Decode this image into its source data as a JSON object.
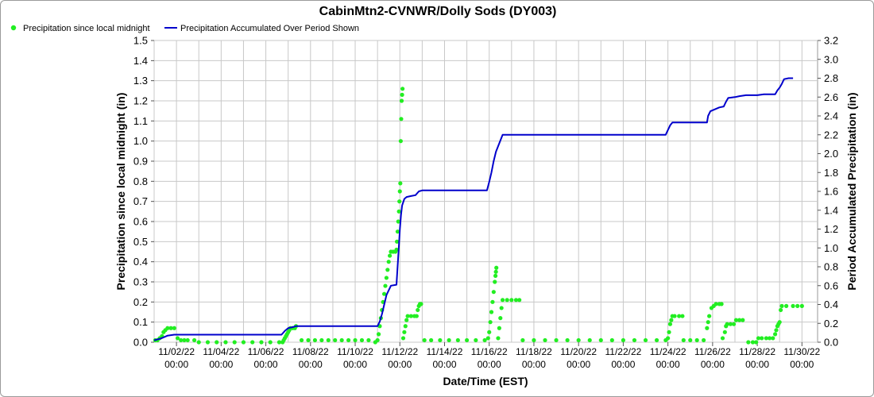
{
  "chart_data": {
    "type": "line",
    "title": "CabinMtn2-CVNWR/Dolly Sods (DY003)",
    "xlabel": "Date/Time (EST)",
    "ylabel_left": "Precipitation since local midnight (in)",
    "ylabel_right": "Period Accumulated Precipitation (in)",
    "y_left_range": [
      0,
      1.5
    ],
    "y_right_range": [
      0,
      3.2
    ],
    "y_left_ticks": [
      "0.0",
      "0.1",
      "0.2",
      "0.3",
      "0.4",
      "0.5",
      "0.6",
      "0.7",
      "0.8",
      "0.9",
      "1.0",
      "1.1",
      "1.2",
      "1.3",
      "1.4",
      "1.5"
    ],
    "y_right_ticks": [
      "0.0",
      "0.2",
      "0.4",
      "0.6",
      "0.8",
      "1.0",
      "1.2",
      "1.4",
      "1.6",
      "1.8",
      "2.0",
      "2.2",
      "2.4",
      "2.6",
      "2.8",
      "3.0",
      "3.2"
    ],
    "x_range_days": [
      0,
      29.7
    ],
    "x_ticks": [
      {
        "date": "11/02/22",
        "time": "00:00"
      },
      {
        "date": "11/04/22",
        "time": "00:00"
      },
      {
        "date": "11/06/22",
        "time": "00:00"
      },
      {
        "date": "11/08/22",
        "time": "00:00"
      },
      {
        "date": "11/10/22",
        "time": "00:00"
      },
      {
        "date": "11/12/22",
        "time": "00:00"
      },
      {
        "date": "11/14/22",
        "time": "00:00"
      },
      {
        "date": "11/16/22",
        "time": "00:00"
      },
      {
        "date": "11/18/22",
        "time": "00:00"
      },
      {
        "date": "11/20/22",
        "time": "00:00"
      },
      {
        "date": "11/22/22",
        "time": "00:00"
      },
      {
        "date": "11/24/22",
        "time": "00:00"
      },
      {
        "date": "11/26/22",
        "time": "00:00"
      },
      {
        "date": "11/28/22",
        "time": "00:00"
      },
      {
        "date": "11/30/22",
        "time": "00:00"
      }
    ],
    "grid": true,
    "legend_position": "top-left",
    "series": [
      {
        "name": "Precipitation since local midnight",
        "color": "#22ee22",
        "marker": "dot",
        "axis": "left",
        "points": [
          [
            0.05,
            0.01
          ],
          [
            0.15,
            0.01
          ],
          [
            0.25,
            0.02
          ],
          [
            0.35,
            0.03
          ],
          [
            0.42,
            0.05
          ],
          [
            0.5,
            0.06
          ],
          [
            0.6,
            0.07
          ],
          [
            0.75,
            0.07
          ],
          [
            0.9,
            0.07
          ],
          [
            1.05,
            0.02
          ],
          [
            1.2,
            0.01
          ],
          [
            1.35,
            0.01
          ],
          [
            1.5,
            0.01
          ],
          [
            1.8,
            0.01
          ],
          [
            2.0,
            0.0
          ],
          [
            2.4,
            0.0
          ],
          [
            2.8,
            0.0
          ],
          [
            3.2,
            0.0
          ],
          [
            3.6,
            0.0
          ],
          [
            4.0,
            0.0
          ],
          [
            4.4,
            0.0
          ],
          [
            4.8,
            0.0
          ],
          [
            5.2,
            0.0
          ],
          [
            5.6,
            0.0
          ],
          [
            5.75,
            0.0
          ],
          [
            5.8,
            0.01
          ],
          [
            5.85,
            0.02
          ],
          [
            5.9,
            0.03
          ],
          [
            5.95,
            0.04
          ],
          [
            6.0,
            0.05
          ],
          [
            6.05,
            0.06
          ],
          [
            6.1,
            0.07
          ],
          [
            6.2,
            0.07
          ],
          [
            6.3,
            0.07
          ],
          [
            6.35,
            0.08
          ],
          [
            6.6,
            0.01
          ],
          [
            6.9,
            0.01
          ],
          [
            7.2,
            0.01
          ],
          [
            7.5,
            0.01
          ],
          [
            7.8,
            0.01
          ],
          [
            8.1,
            0.01
          ],
          [
            8.4,
            0.01
          ],
          [
            8.7,
            0.01
          ],
          [
            9.0,
            0.01
          ],
          [
            9.3,
            0.01
          ],
          [
            9.6,
            0.01
          ],
          [
            9.9,
            0.0
          ],
          [
            10.0,
            0.01
          ],
          [
            10.05,
            0.04
          ],
          [
            10.1,
            0.08
          ],
          [
            10.15,
            0.12
          ],
          [
            10.2,
            0.16
          ],
          [
            10.25,
            0.2
          ],
          [
            10.3,
            0.24
          ],
          [
            10.35,
            0.28
          ],
          [
            10.4,
            0.32
          ],
          [
            10.45,
            0.36
          ],
          [
            10.5,
            0.4
          ],
          [
            10.55,
            0.43
          ],
          [
            10.6,
            0.45
          ],
          [
            10.7,
            0.45
          ],
          [
            10.8,
            0.45
          ],
          [
            10.85,
            0.46
          ],
          [
            10.87,
            0.5
          ],
          [
            10.9,
            0.55
          ],
          [
            10.93,
            0.6
          ],
          [
            10.96,
            0.65
          ],
          [
            10.98,
            0.7
          ],
          [
            11.0,
            0.75
          ],
          [
            11.02,
            0.79
          ],
          [
            11.04,
            1.0
          ],
          [
            11.06,
            1.11
          ],
          [
            11.08,
            1.2
          ],
          [
            11.1,
            1.23
          ],
          [
            11.12,
            1.26
          ],
          [
            11.15,
            0.02
          ],
          [
            11.2,
            0.05
          ],
          [
            11.25,
            0.08
          ],
          [
            11.3,
            0.11
          ],
          [
            11.35,
            0.13
          ],
          [
            11.5,
            0.13
          ],
          [
            11.65,
            0.13
          ],
          [
            11.75,
            0.13
          ],
          [
            11.8,
            0.16
          ],
          [
            11.85,
            0.18
          ],
          [
            11.9,
            0.19
          ],
          [
            11.95,
            0.19
          ],
          [
            12.1,
            0.01
          ],
          [
            12.4,
            0.01
          ],
          [
            12.8,
            0.01
          ],
          [
            13.2,
            0.01
          ],
          [
            13.6,
            0.01
          ],
          [
            14.0,
            0.01
          ],
          [
            14.4,
            0.01
          ],
          [
            14.8,
            0.01
          ],
          [
            14.95,
            0.02
          ],
          [
            15.0,
            0.05
          ],
          [
            15.05,
            0.1
          ],
          [
            15.1,
            0.15
          ],
          [
            15.15,
            0.2
          ],
          [
            15.2,
            0.25
          ],
          [
            15.25,
            0.3
          ],
          [
            15.28,
            0.33
          ],
          [
            15.3,
            0.35
          ],
          [
            15.32,
            0.37
          ],
          [
            15.4,
            0.02
          ],
          [
            15.45,
            0.07
          ],
          [
            15.5,
            0.12
          ],
          [
            15.55,
            0.17
          ],
          [
            15.6,
            0.21
          ],
          [
            15.8,
            0.21
          ],
          [
            16.0,
            0.21
          ],
          [
            16.2,
            0.21
          ],
          [
            16.35,
            0.21
          ],
          [
            16.5,
            0.01
          ],
          [
            17.0,
            0.01
          ],
          [
            17.5,
            0.01
          ],
          [
            18.0,
            0.01
          ],
          [
            18.5,
            0.01
          ],
          [
            19.0,
            0.01
          ],
          [
            19.5,
            0.01
          ],
          [
            20.0,
            0.01
          ],
          [
            20.5,
            0.01
          ],
          [
            21.0,
            0.01
          ],
          [
            21.5,
            0.01
          ],
          [
            22.0,
            0.01
          ],
          [
            22.5,
            0.01
          ],
          [
            22.9,
            0.01
          ],
          [
            23.0,
            0.02
          ],
          [
            23.05,
            0.05
          ],
          [
            23.1,
            0.09
          ],
          [
            23.15,
            0.11
          ],
          [
            23.2,
            0.13
          ],
          [
            23.3,
            0.13
          ],
          [
            23.5,
            0.13
          ],
          [
            23.65,
            0.13
          ],
          [
            23.7,
            0.01
          ],
          [
            24.0,
            0.01
          ],
          [
            24.3,
            0.01
          ],
          [
            24.6,
            0.01
          ],
          [
            24.75,
            0.07
          ],
          [
            24.8,
            0.1
          ],
          [
            24.85,
            0.13
          ],
          [
            24.95,
            0.17
          ],
          [
            25.05,
            0.18
          ],
          [
            25.15,
            0.19
          ],
          [
            25.3,
            0.19
          ],
          [
            25.4,
            0.19
          ],
          [
            25.45,
            0.02
          ],
          [
            25.55,
            0.05
          ],
          [
            25.6,
            0.08
          ],
          [
            25.65,
            0.09
          ],
          [
            25.8,
            0.09
          ],
          [
            25.95,
            0.09
          ],
          [
            26.05,
            0.11
          ],
          [
            26.2,
            0.11
          ],
          [
            26.35,
            0.11
          ],
          [
            26.6,
            0.0
          ],
          [
            26.8,
            0.0
          ],
          [
            26.95,
            0.0
          ],
          [
            27.05,
            0.02
          ],
          [
            27.2,
            0.02
          ],
          [
            27.4,
            0.02
          ],
          [
            27.55,
            0.02
          ],
          [
            27.7,
            0.02
          ],
          [
            27.8,
            0.04
          ],
          [
            27.85,
            0.06
          ],
          [
            27.9,
            0.08
          ],
          [
            27.95,
            0.09
          ],
          [
            28.0,
            0.1
          ],
          [
            28.05,
            0.16
          ],
          [
            28.1,
            0.18
          ],
          [
            28.3,
            0.18
          ],
          [
            28.6,
            0.18
          ],
          [
            28.8,
            0.18
          ],
          [
            29.0,
            0.18
          ]
        ]
      },
      {
        "name": "Precipitation Accumulated Over Period Shown",
        "color": "#0000cc",
        "marker": "line",
        "axis": "right",
        "points": [
          [
            0.0,
            0.02
          ],
          [
            0.3,
            0.04
          ],
          [
            0.5,
            0.06
          ],
          [
            0.6,
            0.07
          ],
          [
            0.9,
            0.08
          ],
          [
            5.7,
            0.08
          ],
          [
            5.85,
            0.12
          ],
          [
            6.0,
            0.15
          ],
          [
            6.2,
            0.16
          ],
          [
            6.35,
            0.17
          ],
          [
            10.0,
            0.17
          ],
          [
            10.1,
            0.22
          ],
          [
            10.2,
            0.3
          ],
          [
            10.3,
            0.4
          ],
          [
            10.4,
            0.5
          ],
          [
            10.5,
            0.55
          ],
          [
            10.6,
            0.6
          ],
          [
            10.85,
            0.61
          ],
          [
            10.9,
            0.8
          ],
          [
            10.95,
            1.0
          ],
          [
            11.0,
            1.2
          ],
          [
            11.05,
            1.35
          ],
          [
            11.1,
            1.45
          ],
          [
            11.2,
            1.52
          ],
          [
            11.3,
            1.54
          ],
          [
            11.5,
            1.55
          ],
          [
            11.7,
            1.56
          ],
          [
            11.85,
            1.6
          ],
          [
            12.0,
            1.61
          ],
          [
            13.0,
            1.61
          ],
          [
            14.0,
            1.61
          ],
          [
            14.9,
            1.61
          ],
          [
            15.0,
            1.7
          ],
          [
            15.1,
            1.8
          ],
          [
            15.2,
            1.92
          ],
          [
            15.3,
            2.02
          ],
          [
            15.4,
            2.08
          ],
          [
            15.6,
            2.2
          ],
          [
            16.0,
            2.2
          ],
          [
            20.0,
            2.2
          ],
          [
            22.9,
            2.2
          ],
          [
            23.0,
            2.25
          ],
          [
            23.1,
            2.3
          ],
          [
            23.2,
            2.33
          ],
          [
            24.0,
            2.33
          ],
          [
            24.75,
            2.33
          ],
          [
            24.8,
            2.4
          ],
          [
            24.9,
            2.45
          ],
          [
            25.1,
            2.47
          ],
          [
            25.3,
            2.49
          ],
          [
            25.5,
            2.5
          ],
          [
            25.6,
            2.55
          ],
          [
            25.7,
            2.59
          ],
          [
            26.0,
            2.6
          ],
          [
            26.2,
            2.61
          ],
          [
            26.5,
            2.62
          ],
          [
            27.0,
            2.62
          ],
          [
            27.3,
            2.63
          ],
          [
            27.8,
            2.63
          ],
          [
            27.9,
            2.67
          ],
          [
            28.0,
            2.7
          ],
          [
            28.1,
            2.74
          ],
          [
            28.2,
            2.79
          ],
          [
            28.4,
            2.8
          ],
          [
            28.6,
            2.8
          ]
        ]
      }
    ]
  }
}
